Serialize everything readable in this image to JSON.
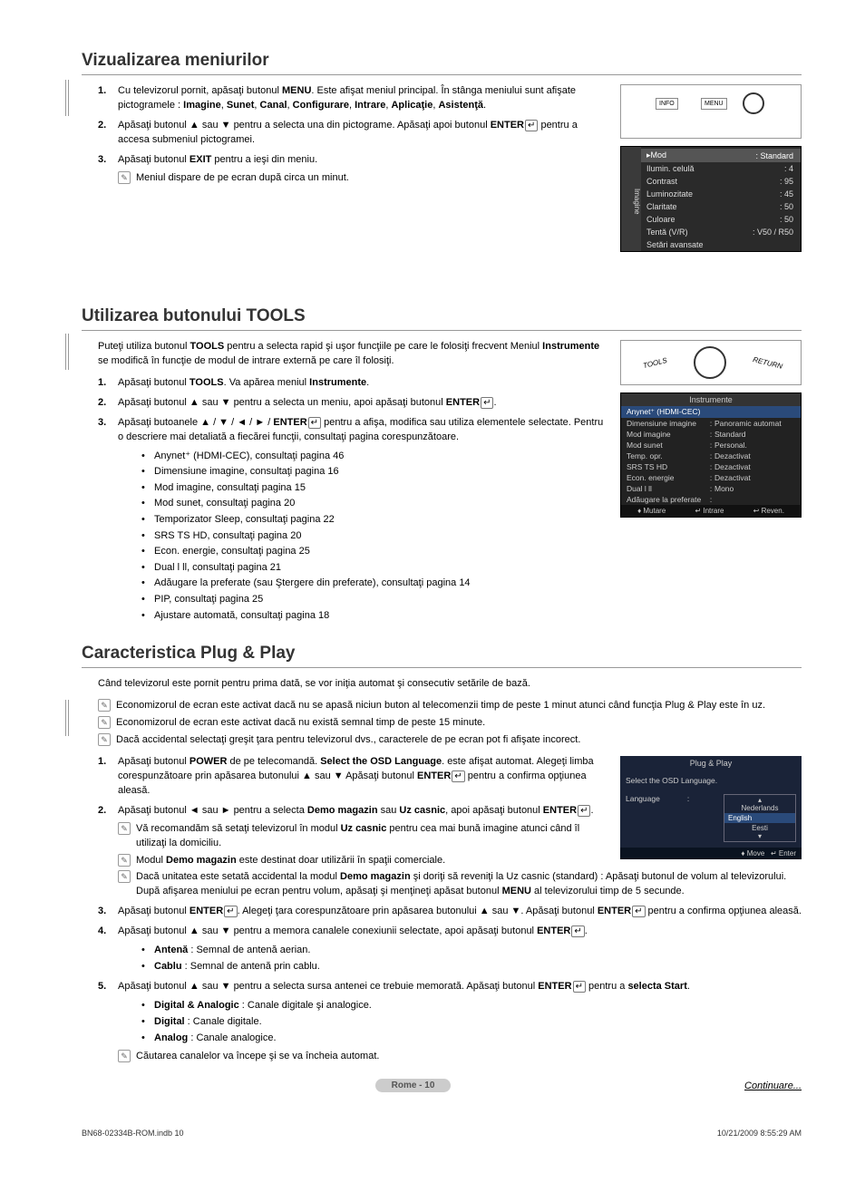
{
  "sections": {
    "s1": {
      "title": "Vizualizarea meniurilor"
    },
    "s2": {
      "title": "Utilizarea butonului TOOLS"
    },
    "s3": {
      "title": "Caracteristica Plug & Play"
    }
  },
  "s1": {
    "step1_a": "Cu televizorul pornit, apăsaţi butonul ",
    "step1_b": "MENU",
    "step1_c": ". Este afişat meniul principal. În stânga meniului sunt afişate pictogramele : ",
    "step1_d": "Imagine",
    "step1_e": ", ",
    "step1_f": "Sunet",
    "step1_g": ", ",
    "step1_h": "Canal",
    "step1_i": ", ",
    "step1_j": "Configurare",
    "step1_k": ", ",
    "step1_l": "Intrare",
    "step1_m": ", ",
    "step1_n": "Aplicaţie",
    "step1_o": ", ",
    "step1_p": "Asistenţă",
    "step1_q": ".",
    "step2_a": "Apăsaţi butonul ▲ sau ▼ pentru a selecta una din pictograme. Apăsaţi apoi butonul ",
    "step2_b": "ENTER",
    "step2_c": " pentru a accesa submeniul pictogramei.",
    "step3_a": "Apăsaţi butonul ",
    "step3_b": "EXIT",
    "step3_c": " pentru a ieşi din meniu.",
    "note1": "Meniul dispare de pe ecran după circa un minut."
  },
  "remote": {
    "info": "INFO",
    "menu": "MENU"
  },
  "osd1": {
    "side": "Imagine",
    "rows": [
      {
        "l": "▸Mod",
        "v": ": Standard",
        "hi": true
      },
      {
        "l": "Ilumin. celulă",
        "v": ": 4"
      },
      {
        "l": "Contrast",
        "v": ": 95"
      },
      {
        "l": "Luminozitate",
        "v": ": 45"
      },
      {
        "l": "Claritate",
        "v": ": 50"
      },
      {
        "l": "Culoare",
        "v": ": 50"
      },
      {
        "l": "Tentă (V/R)",
        "v": ": V50 / R50"
      },
      {
        "l": "Setări avansate",
        "v": ""
      }
    ]
  },
  "s2": {
    "intro_a": "Puteţi utiliza butonul ",
    "intro_b": "TOOLS",
    "intro_c": " pentru a selecta rapid şi uşor funcţiile pe care le folosiţi frecvent Meniul ",
    "intro_d": "Instrumente",
    "intro_e": " se modifică în funcţie de modul de intrare externă pe care îl folosiţi.",
    "step1_a": "Apăsaţi butonul ",
    "step1_b": "TOOLS",
    "step1_c": ". Va apărea meniul ",
    "step1_d": "Instrumente",
    "step1_e": ".",
    "step2_a": "Apăsaţi butonul ▲ sau ▼ pentru a selecta un meniu, apoi apăsaţi butonul ",
    "step2_b": "ENTER",
    "step2_c": ".",
    "step3_a": "Apăsaţi butoanele ▲ / ▼ / ◄ / ► / ",
    "step3_b": "ENTER",
    "step3_c": " pentru a afişa, modifica sau utiliza elementele selectate. Pentru o descriere mai detaliată a fiecărei funcţii, consultaţi pagina corespunzătoare.",
    "bullets": [
      "Anynet⁺ (HDMI-CEC), consultaţi pagina 46",
      "Dimensiune imagine, consultaţi pagina 16",
      "Mod imagine, consultaţi pagina 15",
      "Mod sunet, consultaţi pagina 20",
      "Temporizator Sleep, consultaţi pagina 22",
      "SRS TS HD, consultaţi pagina 20",
      "Econ. energie, consultaţi pagina 25",
      "Dual l ll, consultaţi pagina 21",
      "Adăugare la preferate (sau Ştergere din preferate), consultaţi pagina 14",
      "PIP, consultaţi pagina 25",
      "Ajustare automată, consultaţi pagina 18"
    ]
  },
  "toolsOsd": {
    "hdr": "Instrumente",
    "sel": "Anynet⁺ (HDMI-CEC)",
    "rows": [
      {
        "l": "Dimensiune imagine",
        "r": "Panoramic automat"
      },
      {
        "l": "Mod imagine",
        "r": "Standard"
      },
      {
        "l": "Mod sunet",
        "r": "Personal."
      },
      {
        "l": "Temp. opr.",
        "r": "Dezactivat"
      },
      {
        "l": "SRS TS HD",
        "r": "Dezactivat"
      },
      {
        "l": "Econ. energie",
        "r": "Dezactivat"
      },
      {
        "l": "Dual l ll",
        "r": "Mono"
      },
      {
        "l": "Adăugare la preferate",
        "r": ""
      }
    ],
    "ftr": {
      "a": "♦ Mutare",
      "b": "↵ Intrare",
      "c": "↩ Reven."
    }
  },
  "remote2": {
    "tools": "TOOLS",
    "return": "RETURN"
  },
  "s3": {
    "intro": "Când televizorul este pornit pentru prima dată, se vor iniţia automat şi consecutiv setările de bază.",
    "note1": "Economizorul de ecran este activat dacă nu se apasă niciun buton al telecomenzii timp de peste 1 minut atunci când funcţia Plug & Play este în uz.",
    "note2": "Economizorul de ecran este activat dacă nu există semnal timp de peste 15 minute.",
    "note3": "Dacă accidental selectaţi greşit ţara pentru televizorul dvs., caracterele de pe ecran pot fi afişate incorect.",
    "step1_a": "Apăsaţi butonul ",
    "step1_b": "POWER",
    "step1_c": " de pe telecomandă. ",
    "step1_d": "Select the OSD Language",
    "step1_e": ". este afişat automat. Alegeţi limba corespunzătoare prin apăsarea butonului ▲ sau ▼ Apăsaţi butonul ",
    "step1_f": "ENTER",
    "step1_g": " pentru a confirma opţiunea aleasă.",
    "step2_a": "Apăsaţi butonul ◄ sau ► pentru a selecta ",
    "step2_b": "Demo magazin",
    "step2_c": " sau ",
    "step2_d": "Uz casnic",
    "step2_e": ", apoi apăsaţi butonul ",
    "step2_f": "ENTER",
    "step2_g": ".",
    "note2a_a": "Vă recomandăm să setaţi televizorul în modul ",
    "note2a_b": "Uz casnic",
    "note2a_c": " pentru cea mai bună imagine atunci când îl utilizaţi la domiciliu.",
    "note2b_a": "Modul ",
    "note2b_b": "Demo magazin",
    "note2b_c": " este destinat doar utilizării în spaţii comerciale.",
    "note2c_a": "Dacă unitatea este setată accidental la modul ",
    "note2c_b": "Demo magazin",
    "note2c_c": " şi doriţi să reveniţi la Uz casnic (standard) : Apăsaţi butonul de volum al televizorului. După afişarea meniului pe ecran pentru volum, apăsaţi şi menţineţi apăsat butonul ",
    "note2c_d": "MENU",
    "note2c_e": " al televizorului timp de 5 secunde.",
    "step3_a": "Apăsaţi butonul ",
    "step3_b": "ENTER",
    "step3_c": ". Alegeţi ţara corespunzătoare prin apăsarea butonului ▲ sau ▼. Apăsaţi butonul ",
    "step3_d": "ENTER",
    "step3_e": " pentru a confirma opţiunea aleasă.",
    "step4_a": "Apăsaţi butonul ▲ sau ▼ pentru a memora canalele conexiunii selectate, apoi apăsaţi butonul ",
    "step4_b": "ENTER",
    "step4_c": ".",
    "step4_bul1_a": "Antenă",
    "step4_bul1_b": " : Semnal de antenă aerian.",
    "step4_bul2_a": "Cablu",
    "step4_bul2_b": " : Semnal de antenă prin cablu.",
    "step5_a": "Apăsaţi butonul ▲ sau ▼ pentru a selecta sursa antenei ce trebuie memorată. Apăsaţi butonul ",
    "step5_b": "ENTER",
    "step5_c": " pentru a ",
    "step5_d": "selecta Start",
    "step5_e": ".",
    "step5_bul1_a": "Digital & Analogic",
    "step5_bul1_b": " : Canale digitale şi analogice.",
    "step5_bul2_a": "Digital",
    "step5_bul2_b": " : Canale digitale.",
    "step5_bul3_a": "Analog",
    "step5_bul3_b": " : Canale analogice.",
    "note5": "Căutarea canalelor va începe şi se va încheia automat."
  },
  "pnp": {
    "hdr": "Plug & Play",
    "label": "Select the OSD Language.",
    "lang": "Language",
    "opts": [
      "Nederlands",
      "English",
      "Eesti"
    ],
    "ftr": {
      "a": "♦ Move",
      "b": "↵ Enter"
    }
  },
  "bottom": {
    "page": "Rome - 10",
    "cont": "Continuare..."
  },
  "footer": {
    "l": "BN68-02334B-ROM.indb   10",
    "r": "10/21/2009   8:55:29 AM"
  },
  "colors": {
    "osd_bg": "#2a2a2a",
    "osd_hi": "#555555",
    "tools_sel": "#2a4a7a",
    "pnp_bg": "#1a2338",
    "pill": "#cccccc"
  }
}
